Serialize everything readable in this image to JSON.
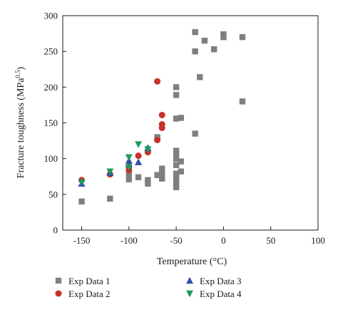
{
  "chart_data": {
    "type": "scatter",
    "title": "",
    "xlabel": "Temperature (°C)",
    "ylabel_main": "Fracture toughness (MPa",
    "ylabel_sup": "0.5",
    "ylabel_end": ")",
    "xlim": [
      -170,
      100
    ],
    "ylim": [
      0,
      300
    ],
    "xticks": [
      -150,
      -100,
      -50,
      0,
      50,
      100
    ],
    "xtick_labels": [
      "-150",
      "-100",
      "-50",
      "0",
      "50",
      "100"
    ],
    "yticks": [
      0,
      50,
      100,
      150,
      200,
      250,
      300
    ],
    "ytick_labels": [
      "0",
      "50",
      "100",
      "150",
      "200",
      "250",
      "300"
    ],
    "grid": false,
    "legend_position": "bottom",
    "series": [
      {
        "name": "Exp Data 1",
        "marker": "square",
        "color": "#7f7f7f",
        "points": [
          [
            -150,
            40
          ],
          [
            -120,
            44
          ],
          [
            -100,
            71
          ],
          [
            -100,
            78
          ],
          [
            -100,
            87
          ],
          [
            -90,
            74
          ],
          [
            -80,
            65
          ],
          [
            -80,
            70
          ],
          [
            -70,
            77
          ],
          [
            -70,
            130
          ],
          [
            -65,
            72
          ],
          [
            -65,
            78
          ],
          [
            -65,
            86
          ],
          [
            -50,
            60
          ],
          [
            -50,
            64
          ],
          [
            -50,
            68
          ],
          [
            -50,
            74
          ],
          [
            -50,
            79
          ],
          [
            -50,
            91
          ],
          [
            -50,
            100
          ],
          [
            -50,
            106
          ],
          [
            -50,
            111
          ],
          [
            -50,
            156
          ],
          [
            -50,
            189
          ],
          [
            -50,
            200
          ],
          [
            -45,
            82
          ],
          [
            -45,
            96
          ],
          [
            -45,
            157
          ],
          [
            -30,
            135
          ],
          [
            -30,
            250
          ],
          [
            -30,
            277
          ],
          [
            -25,
            214
          ],
          [
            -20,
            265
          ],
          [
            -10,
            253
          ],
          [
            0,
            270
          ],
          [
            0,
            274
          ],
          [
            20,
            180
          ],
          [
            20,
            270
          ]
        ]
      },
      {
        "name": "Exp Data 2",
        "marker": "circle",
        "color": "#c8312a",
        "points": [
          [
            -150,
            70
          ],
          [
            -120,
            78
          ],
          [
            -100,
            84
          ],
          [
            -90,
            104
          ],
          [
            -80,
            109
          ],
          [
            -70,
            126
          ],
          [
            -70,
            208
          ],
          [
            -65,
            143
          ],
          [
            -65,
            148
          ],
          [
            -65,
            161
          ]
        ]
      },
      {
        "name": "Exp Data 3",
        "marker": "triangle-up",
        "color": "#2e4fa8",
        "points": [
          [
            -150,
            65
          ],
          [
            -120,
            80
          ],
          [
            -100,
            92
          ],
          [
            -100,
            97
          ],
          [
            -90,
            95
          ],
          [
            -80,
            115
          ]
        ]
      },
      {
        "name": "Exp Data 4",
        "marker": "triangle-down",
        "color": "#1f9a5c",
        "points": [
          [
            -150,
            67
          ],
          [
            -120,
            82
          ],
          [
            -100,
            88
          ],
          [
            -100,
            102
          ],
          [
            -90,
            120
          ],
          [
            -80,
            113
          ]
        ]
      }
    ]
  }
}
